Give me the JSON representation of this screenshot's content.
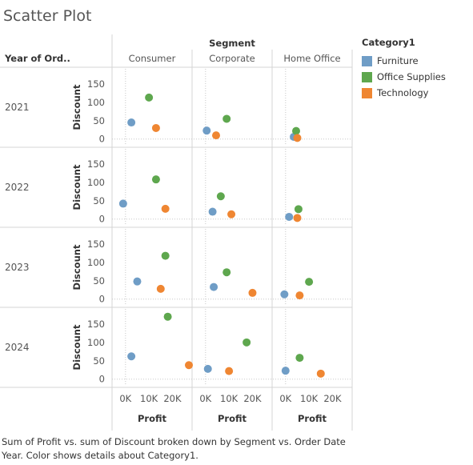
{
  "title": "Scatter Plot",
  "caption": "Sum of Profit vs. sum of Discount broken down by Segment vs. Order Date Year.  Color shows details about Category1.",
  "header": {
    "segment_label": "Segment",
    "row_field_label": "Year of Ord.."
  },
  "legend": {
    "title": "Category1",
    "items": [
      {
        "label": "Furniture",
        "color": "#6f9dc6"
      },
      {
        "label": "Office Supplies",
        "color": "#5ea74e"
      },
      {
        "label": "Technology",
        "color": "#ef8632"
      }
    ]
  },
  "chart_data": {
    "type": "scatter",
    "columns": [
      "Consumer",
      "Corporate",
      "Home Office"
    ],
    "rows": [
      "2021",
      "2022",
      "2023",
      "2024"
    ],
    "xlabel": "Profit",
    "ylabel": "Discount",
    "x_ticks": [
      {
        "value": 0,
        "label": "0K"
      },
      {
        "value": 10000,
        "label": "10K"
      },
      {
        "value": 20000,
        "label": "20K"
      }
    ],
    "y_ticks": [
      0,
      50,
      100,
      150
    ],
    "xlim": [
      -3000,
      27000
    ],
    "ylim": [
      -5,
      165
    ],
    "points": [
      {
        "row": "2021",
        "col": "Consumer",
        "category": "Furniture",
        "x": 2500,
        "y": 45
      },
      {
        "row": "2021",
        "col": "Consumer",
        "category": "Office Supplies",
        "x": 10000,
        "y": 113
      },
      {
        "row": "2021",
        "col": "Consumer",
        "category": "Technology",
        "x": 13000,
        "y": 30
      },
      {
        "row": "2021",
        "col": "Corporate",
        "category": "Furniture",
        "x": 500,
        "y": 23
      },
      {
        "row": "2021",
        "col": "Corporate",
        "category": "Office Supplies",
        "x": 9000,
        "y": 55
      },
      {
        "row": "2021",
        "col": "Corporate",
        "category": "Technology",
        "x": 4500,
        "y": 10
      },
      {
        "row": "2021",
        "col": "Home Office",
        "category": "Furniture",
        "x": 3500,
        "y": 6
      },
      {
        "row": "2021",
        "col": "Home Office",
        "category": "Office Supplies",
        "x": 4500,
        "y": 22
      },
      {
        "row": "2021",
        "col": "Home Office",
        "category": "Technology",
        "x": 5000,
        "y": 3
      },
      {
        "row": "2022",
        "col": "Consumer",
        "category": "Furniture",
        "x": -1000,
        "y": 42
      },
      {
        "row": "2022",
        "col": "Consumer",
        "category": "Office Supplies",
        "x": 13000,
        "y": 108
      },
      {
        "row": "2022",
        "col": "Consumer",
        "category": "Technology",
        "x": 17000,
        "y": 28
      },
      {
        "row": "2022",
        "col": "Corporate",
        "category": "Furniture",
        "x": 3000,
        "y": 20
      },
      {
        "row": "2022",
        "col": "Corporate",
        "category": "Office Supplies",
        "x": 6500,
        "y": 62
      },
      {
        "row": "2022",
        "col": "Corporate",
        "category": "Technology",
        "x": 11000,
        "y": 13
      },
      {
        "row": "2022",
        "col": "Home Office",
        "category": "Furniture",
        "x": 1500,
        "y": 6
      },
      {
        "row": "2022",
        "col": "Home Office",
        "category": "Office Supplies",
        "x": 5500,
        "y": 27
      },
      {
        "row": "2022",
        "col": "Home Office",
        "category": "Technology",
        "x": 5000,
        "y": 3
      },
      {
        "row": "2023",
        "col": "Consumer",
        "category": "Furniture",
        "x": 5000,
        "y": 48
      },
      {
        "row": "2023",
        "col": "Consumer",
        "category": "Office Supplies",
        "x": 17000,
        "y": 118
      },
      {
        "row": "2023",
        "col": "Consumer",
        "category": "Technology",
        "x": 15000,
        "y": 28
      },
      {
        "row": "2023",
        "col": "Corporate",
        "category": "Furniture",
        "x": 3500,
        "y": 33
      },
      {
        "row": "2023",
        "col": "Corporate",
        "category": "Office Supplies",
        "x": 9000,
        "y": 73
      },
      {
        "row": "2023",
        "col": "Corporate",
        "category": "Technology",
        "x": 20000,
        "y": 17
      },
      {
        "row": "2023",
        "col": "Home Office",
        "category": "Furniture",
        "x": -500,
        "y": 13
      },
      {
        "row": "2023",
        "col": "Home Office",
        "category": "Office Supplies",
        "x": 10000,
        "y": 47
      },
      {
        "row": "2023",
        "col": "Home Office",
        "category": "Technology",
        "x": 6000,
        "y": 10
      },
      {
        "row": "2024",
        "col": "Consumer",
        "category": "Furniture",
        "x": 2500,
        "y": 62
      },
      {
        "row": "2024",
        "col": "Consumer",
        "category": "Office Supplies",
        "x": 18000,
        "y": 170
      },
      {
        "row": "2024",
        "col": "Consumer",
        "category": "Technology",
        "x": 27000,
        "y": 38
      },
      {
        "row": "2024",
        "col": "Corporate",
        "category": "Furniture",
        "x": 1000,
        "y": 28
      },
      {
        "row": "2024",
        "col": "Corporate",
        "category": "Office Supplies",
        "x": 17500,
        "y": 100
      },
      {
        "row": "2024",
        "col": "Corporate",
        "category": "Technology",
        "x": 10000,
        "y": 22
      },
      {
        "row": "2024",
        "col": "Home Office",
        "category": "Furniture",
        "x": 0,
        "y": 23
      },
      {
        "row": "2024",
        "col": "Home Office",
        "category": "Office Supplies",
        "x": 6000,
        "y": 58
      },
      {
        "row": "2024",
        "col": "Home Office",
        "category": "Technology",
        "x": 15000,
        "y": 15
      }
    ]
  }
}
